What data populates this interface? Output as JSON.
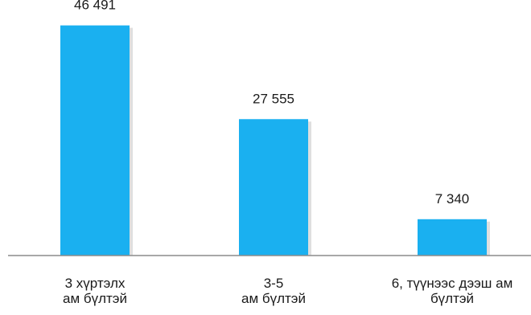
{
  "chart_data": {
    "type": "bar",
    "categories": [
      "3 хүртэлх ам бүлтэй",
      "3-5 ам бүлтэй",
      "6, түүнээс дээш ам бүлтэй"
    ],
    "category_lines": [
      [
        "3 хүртэлх",
        "ам бүлтэй"
      ],
      [
        "3-5",
        "ам бүлтэй"
      ],
      [
        "6, түүнээс дээш ам",
        "бүлтэй"
      ]
    ],
    "values": [
      46491,
      27555,
      7340
    ],
    "data_labels": [
      "46 491",
      "27 555",
      "7 340"
    ],
    "title": "",
    "xlabel": "",
    "ylabel": "",
    "ylim": [
      0,
      50000
    ],
    "grid": false,
    "legend": "none",
    "colors": {
      "bar": "#1AB0F0",
      "bar_shadow": "#C9C9C9",
      "axis": "#8C8C8C",
      "text": "#1A1A1A"
    }
  }
}
